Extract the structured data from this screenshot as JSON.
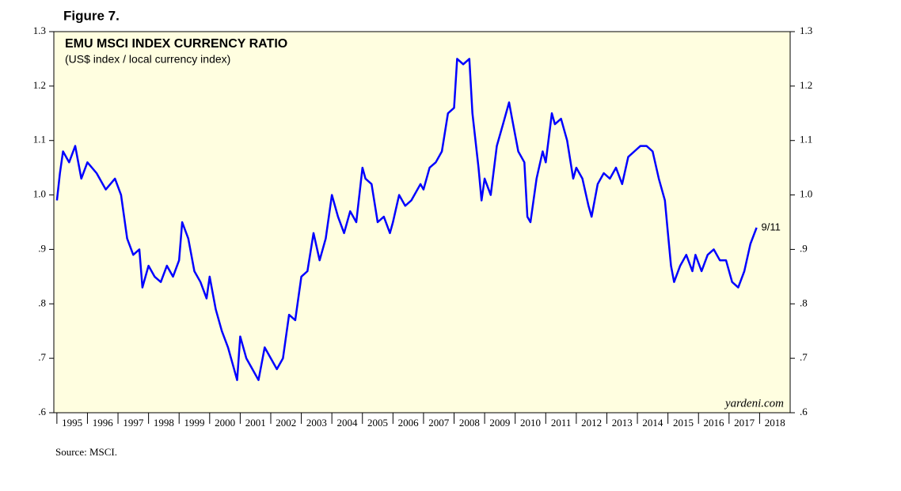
{
  "figure_label": "Figure 7.",
  "source": "Source: MSCI.",
  "chart_data": {
    "type": "line",
    "title": "EMU MSCI INDEX CURRENCY RATIO",
    "subtitle": "(US$ index / local currency index)",
    "watermark": "yardeni.com",
    "annotation": "9/11",
    "xlim": [
      1994.9,
      2019
    ],
    "xticks": [
      1995,
      1996,
      1997,
      1998,
      1999,
      2000,
      2001,
      2002,
      2003,
      2004,
      2005,
      2006,
      2007,
      2008,
      2009,
      2010,
      2011,
      2012,
      2013,
      2014,
      2015,
      2016,
      2017,
      2018
    ],
    "ylim": [
      0.6,
      1.3
    ],
    "yticks": [
      {
        "value": 0.6,
        "label": ".6"
      },
      {
        "value": 0.7,
        "label": ".7"
      },
      {
        "value": 0.8,
        "label": ".8"
      },
      {
        "value": 0.9,
        "label": ".9"
      },
      {
        "value": 1.0,
        "label": "1.0"
      },
      1.1,
      1.2,
      1.3
    ],
    "grid": false,
    "background": "#fffee0",
    "series": [
      {
        "color": "#0000ff",
        "x": [
          1995.0,
          1995.1,
          1995.2,
          1995.4,
          1995.6,
          1995.8,
          1996.0,
          1996.3,
          1996.6,
          1996.9,
          1997.1,
          1997.3,
          1997.5,
          1997.7,
          1997.8,
          1998.0,
          1998.2,
          1998.4,
          1998.6,
          1998.8,
          1999.0,
          1999.1,
          1999.3,
          1999.5,
          1999.7,
          1999.9,
          2000.0,
          2000.2,
          2000.4,
          2000.6,
          2000.8,
          2000.9,
          2001.0,
          2001.2,
          2001.4,
          2001.6,
          2001.8,
          2002.0,
          2002.2,
          2002.4,
          2002.6,
          2002.8,
          2003.0,
          2003.2,
          2003.4,
          2003.6,
          2003.8,
          2004.0,
          2004.2,
          2004.4,
          2004.6,
          2004.8,
          2005.0,
          2005.1,
          2005.3,
          2005.5,
          2005.7,
          2005.9,
          2006.0,
          2006.2,
          2006.4,
          2006.6,
          2006.9,
          2007.0,
          2007.2,
          2007.4,
          2007.6,
          2007.8,
          2008.0,
          2008.1,
          2008.3,
          2008.5,
          2008.6,
          2008.8,
          2008.9,
          2009.0,
          2009.2,
          2009.4,
          2009.6,
          2009.8,
          2009.9,
          2010.1,
          2010.3,
          2010.4,
          2010.5,
          2010.7,
          2010.9,
          2011.0,
          2011.2,
          2011.3,
          2011.5,
          2011.7,
          2011.9,
          2012.0,
          2012.2,
          2012.4,
          2012.5,
          2012.7,
          2012.9,
          2013.1,
          2013.3,
          2013.5,
          2013.7,
          2013.9,
          2014.1,
          2014.3,
          2014.5,
          2014.7,
          2014.9,
          2015.0,
          2015.1,
          2015.2,
          2015.4,
          2015.6,
          2015.8,
          2015.9,
          2016.1,
          2016.3,
          2016.5,
          2016.7,
          2016.9,
          2017.1,
          2017.3,
          2017.5,
          2017.7,
          2017.9
        ],
        "values": [
          0.99,
          1.04,
          1.08,
          1.06,
          1.09,
          1.03,
          1.06,
          1.04,
          1.01,
          1.03,
          1.0,
          0.92,
          0.89,
          0.9,
          0.83,
          0.87,
          0.85,
          0.84,
          0.87,
          0.85,
          0.88,
          0.95,
          0.92,
          0.86,
          0.84,
          0.81,
          0.85,
          0.79,
          0.75,
          0.72,
          0.68,
          0.66,
          0.74,
          0.7,
          0.68,
          0.66,
          0.72,
          0.7,
          0.68,
          0.7,
          0.78,
          0.77,
          0.85,
          0.86,
          0.93,
          0.88,
          0.92,
          1.0,
          0.96,
          0.93,
          0.97,
          0.95,
          1.05,
          1.03,
          1.02,
          0.95,
          0.96,
          0.93,
          0.95,
          1.0,
          0.98,
          0.99,
          1.02,
          1.01,
          1.05,
          1.06,
          1.08,
          1.15,
          1.16,
          1.25,
          1.24,
          1.25,
          1.15,
          1.05,
          0.99,
          1.03,
          1.0,
          1.09,
          1.13,
          1.17,
          1.14,
          1.08,
          1.06,
          0.96,
          0.95,
          1.03,
          1.08,
          1.06,
          1.15,
          1.13,
          1.14,
          1.1,
          1.03,
          1.05,
          1.03,
          0.98,
          0.96,
          1.02,
          1.04,
          1.03,
          1.05,
          1.02,
          1.07,
          1.08,
          1.09,
          1.09,
          1.08,
          1.03,
          0.99,
          0.93,
          0.87,
          0.84,
          0.87,
          0.89,
          0.86,
          0.89,
          0.86,
          0.89,
          0.9,
          0.88,
          0.88,
          0.84,
          0.83,
          0.86,
          0.91,
          0.94
        ]
      }
    ]
  }
}
